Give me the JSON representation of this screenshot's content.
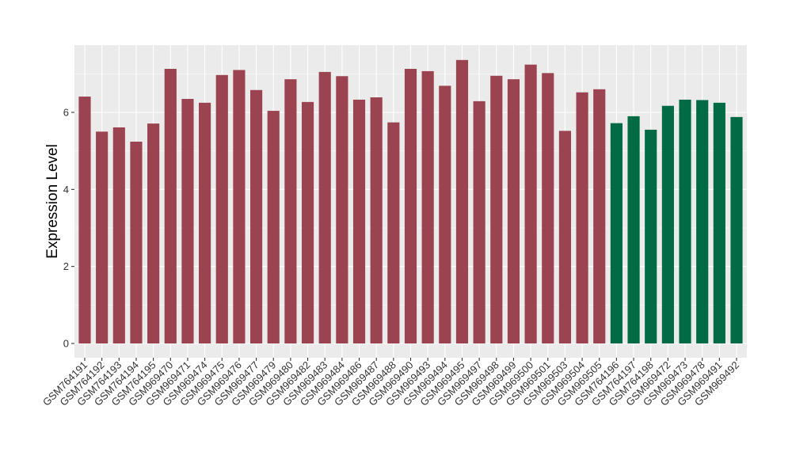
{
  "chart_data": {
    "type": "bar",
    "title": "",
    "xlabel": "",
    "ylabel": "Expression Level",
    "ylim": [
      0,
      7.7
    ],
    "yticks": [
      0,
      2,
      4,
      6
    ],
    "ytick_labels": [
      "0",
      "2",
      "4",
      "6"
    ],
    "grid": true,
    "legend": "none",
    "categories": [
      "GSM764191",
      "GSM764192",
      "GSM764193",
      "GSM764194",
      "GSM764195",
      "GSM969470",
      "GSM969471",
      "GSM969474",
      "GSM969475",
      "GSM969476",
      "GSM969477",
      "GSM969479",
      "GSM969480",
      "GSM969482",
      "GSM969483",
      "GSM969484",
      "GSM969486",
      "GSM969487",
      "GSM969488",
      "GSM969490",
      "GSM969493",
      "GSM969494",
      "GSM969495",
      "GSM969497",
      "GSM969498",
      "GSM969499",
      "GSM969500",
      "GSM969501",
      "GSM969503",
      "GSM969504",
      "GSM969505",
      "GSM764196",
      "GSM764197",
      "GSM764198",
      "GSM969472",
      "GSM969473",
      "GSM969478",
      "GSM969491",
      "GSM969492"
    ],
    "values": [
      6.41,
      5.5,
      5.61,
      5.24,
      5.71,
      7.13,
      6.35,
      6.25,
      6.97,
      7.1,
      6.58,
      6.04,
      6.86,
      6.27,
      7.05,
      6.94,
      6.33,
      6.39,
      5.74,
      7.13,
      7.07,
      6.69,
      7.36,
      6.29,
      6.95,
      6.86,
      7.24,
      7.02,
      5.52,
      6.52,
      6.6,
      5.72,
      5.9,
      5.55,
      6.17,
      6.33,
      6.32,
      6.25,
      5.88
    ],
    "groups": [
      "red",
      "red",
      "red",
      "red",
      "red",
      "red",
      "red",
      "red",
      "red",
      "red",
      "red",
      "red",
      "red",
      "red",
      "red",
      "red",
      "red",
      "red",
      "red",
      "red",
      "red",
      "red",
      "red",
      "red",
      "red",
      "red",
      "red",
      "red",
      "red",
      "red",
      "red",
      "green",
      "green",
      "green",
      "green",
      "green",
      "green",
      "green",
      "green"
    ],
    "colors": {
      "red": "#9b4350",
      "green": "#006b45",
      "panel": "#ebebeb",
      "grid": "#ffffff"
    }
  }
}
